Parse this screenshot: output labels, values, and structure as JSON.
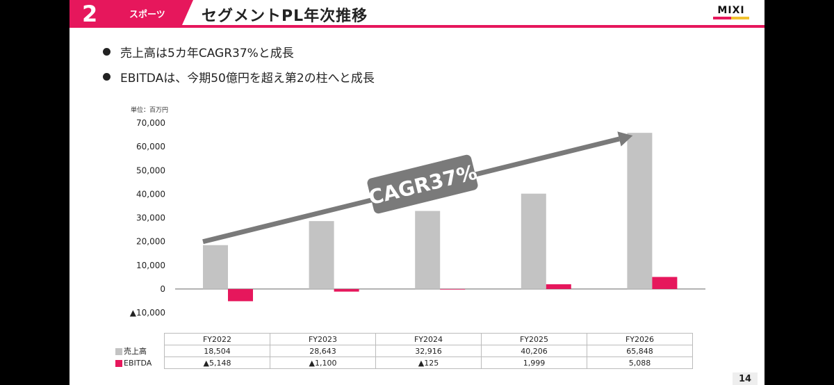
{
  "header": {
    "section_number": "2",
    "section_name": "スポーツ",
    "title": "セグメントPL年次推移",
    "logo": "MIXI",
    "accent": "#e6175c"
  },
  "bullets": [
    "売上高は5カ年CAGR37%と成長",
    "EBITDAは、今期50億円を超え第2の柱へと成長"
  ],
  "chart_data": {
    "type": "bar",
    "unit_label": "単位：百万円",
    "categories": [
      "FY2022",
      "FY2023",
      "FY2024",
      "FY2025",
      "FY2026"
    ],
    "series": [
      {
        "name": "売上高",
        "color": "#c3c3c3",
        "values": [
          18504,
          28643,
          32916,
          40206,
          65848
        ],
        "labels": [
          "18,504",
          "28,643",
          "32,916",
          "40,206",
          "65,848"
        ]
      },
      {
        "name": "EBITDA",
        "color": "#e6175c",
        "values": [
          -5148,
          -1100,
          -125,
          1999,
          5088
        ],
        "labels": [
          "▲5,148",
          "▲1,100",
          "▲125",
          "1,999",
          "5,088"
        ]
      }
    ],
    "ylim": [
      -10000,
      70000
    ],
    "yticks": [
      70000,
      60000,
      50000,
      40000,
      30000,
      20000,
      10000,
      0,
      -10000
    ],
    "ytick_labels": [
      "70,000",
      "60,000",
      "50,000",
      "40,000",
      "30,000",
      "20,000",
      "10,000",
      "0",
      "▲10,000"
    ],
    "annotation": "CAGR37%",
    "annotation_color": "#7a7a7a"
  },
  "page_number": "14"
}
